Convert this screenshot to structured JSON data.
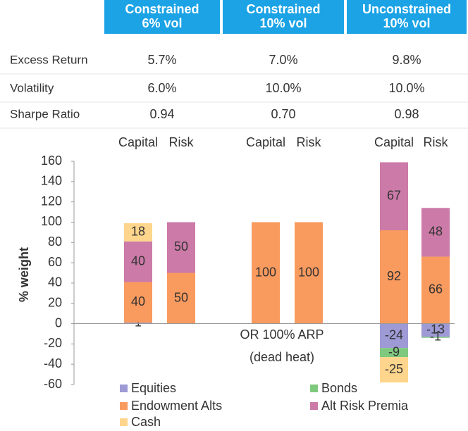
{
  "table": {
    "columns": [
      [
        "Constrained",
        "6% vol"
      ],
      [
        "Constrained",
        "10% vol"
      ],
      [
        "Unconstrained",
        "10% vol"
      ]
    ],
    "rows": [
      {
        "label": "Excess Return",
        "values": [
          "5.7%",
          "7.0%",
          "9.8%"
        ]
      },
      {
        "label": "Volatility",
        "values": [
          "6.0%",
          "10.0%",
          "10.0%"
        ]
      },
      {
        "label": "Sharpe Ratio",
        "values": [
          "0.94",
          "0.70",
          "0.98"
        ]
      }
    ]
  },
  "chart_data": {
    "type": "bar",
    "stacked": true,
    "categories": [
      "Capital",
      "Risk",
      "Capital",
      "Risk",
      "Capital",
      "Risk"
    ],
    "series": [
      {
        "name": "Equities",
        "color": "#9e9ad6",
        "values": [
          1,
          null,
          null,
          null,
          -24,
          -13
        ]
      },
      {
        "name": "Bonds",
        "color": "#7fc97f",
        "values": [
          null,
          null,
          null,
          null,
          -9,
          -1
        ]
      },
      {
        "name": "Endowment Alts",
        "color": "#f99a5e",
        "values": [
          40,
          50,
          100,
          100,
          92,
          66
        ]
      },
      {
        "name": "Alt Risk Premia",
        "color": "#cc7aa8",
        "values": [
          40,
          50,
          null,
          null,
          67,
          48
        ]
      },
      {
        "name": "Cash",
        "color": "#fdd58c",
        "values": [
          18,
          null,
          null,
          null,
          -25,
          null
        ]
      }
    ],
    "ylabel": "% weight",
    "ylim": [
      -60,
      160
    ],
    "yticks": [
      -60,
      -40,
      -20,
      0,
      20,
      40,
      60,
      80,
      100,
      120,
      140,
      160
    ],
    "annotations": [
      "OR 100% ARP",
      "(dead heat)"
    ]
  }
}
